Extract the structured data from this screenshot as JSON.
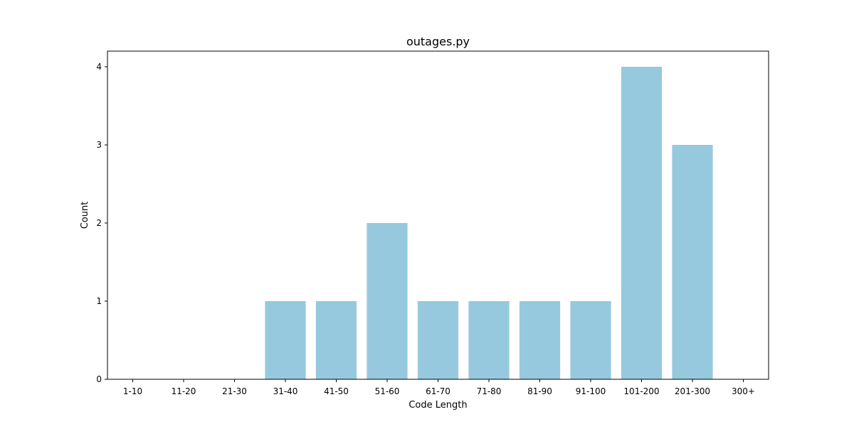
{
  "chart_data": {
    "type": "bar",
    "title": "outages.py",
    "xlabel": "Code Length",
    "ylabel": "Count",
    "categories": [
      "1-10",
      "11-20",
      "21-30",
      "31-40",
      "41-50",
      "51-60",
      "61-70",
      "71-80",
      "81-90",
      "91-100",
      "101-200",
      "201-300",
      "300+"
    ],
    "values": [
      0,
      0,
      0,
      1,
      1,
      2,
      1,
      1,
      1,
      1,
      4,
      3,
      0
    ],
    "ylim": [
      0,
      4.2
    ],
    "yticks": [
      0,
      1,
      2,
      3,
      4
    ],
    "grid": false,
    "legend": "none",
    "bar_color": "#96c9de"
  }
}
